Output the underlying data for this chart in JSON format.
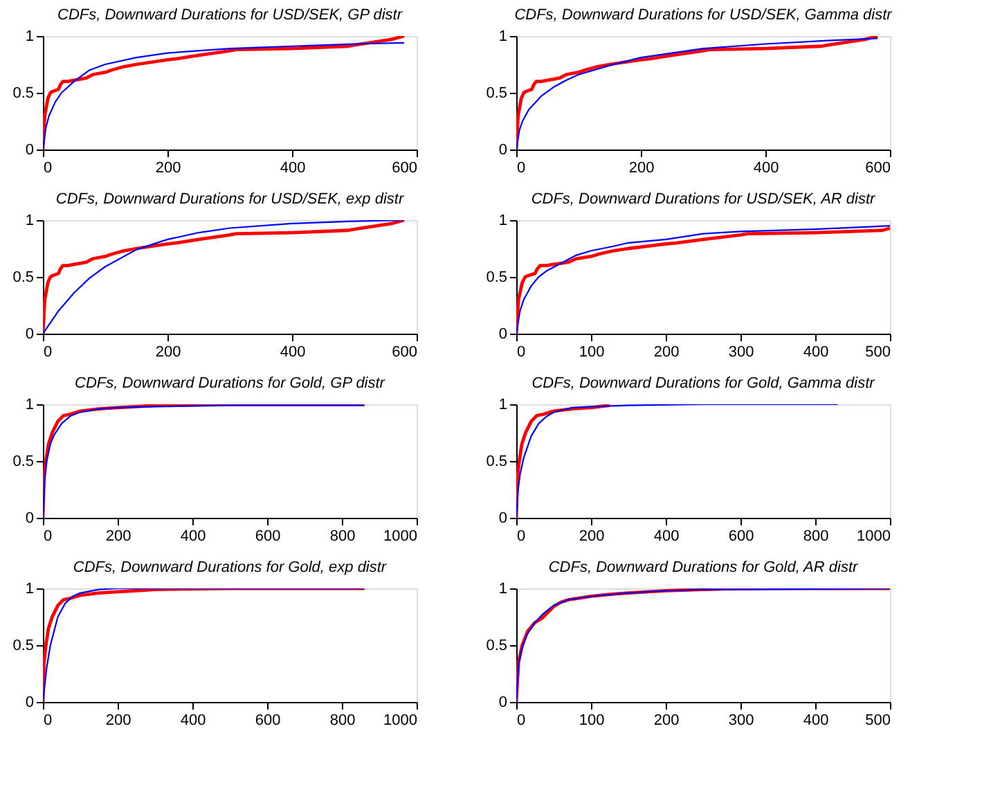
{
  "chart_data": [
    {
      "type": "line",
      "title": "CDFs, Downward Durations for USD/SEK, GP distr",
      "xlim": [
        0,
        600
      ],
      "xticks": [
        0,
        200,
        400,
        600
      ],
      "ylim": [
        0,
        1
      ],
      "yticks": [
        0,
        0.5,
        1
      ],
      "series": [
        {
          "color": "#ff0000",
          "x": [
            0,
            3,
            8,
            12,
            15,
            20,
            25,
            28,
            32,
            40,
            50,
            60,
            70,
            80,
            100,
            110,
            130,
            150,
            200,
            215,
            250,
            300,
            310,
            400,
            490,
            500,
            560,
            580
          ],
          "values": [
            0,
            0.3,
            0.45,
            0.5,
            0.51,
            0.52,
            0.53,
            0.57,
            0.6,
            0.6,
            0.61,
            0.62,
            0.63,
            0.66,
            0.68,
            0.7,
            0.73,
            0.75,
            0.79,
            0.8,
            0.83,
            0.87,
            0.88,
            0.89,
            0.91,
            0.92,
            0.97,
            1.0
          ]
        },
        {
          "color": "#0000ff",
          "x": [
            0,
            5,
            10,
            20,
            30,
            50,
            75,
            100,
            150,
            200,
            300,
            400,
            500,
            580
          ],
          "values": [
            0,
            0.2,
            0.3,
            0.42,
            0.5,
            0.6,
            0.7,
            0.75,
            0.81,
            0.85,
            0.89,
            0.91,
            0.93,
            0.94
          ]
        }
      ]
    },
    {
      "type": "line",
      "title": "CDFs, Downward Durations for USD/SEK, Gamma distr",
      "xlim": [
        0,
        600
      ],
      "xticks": [
        0,
        200,
        400,
        600
      ],
      "ylim": [
        0,
        1
      ],
      "yticks": [
        0,
        0.5,
        1
      ],
      "series": [
        {
          "color": "#ff0000",
          "x": [
            0,
            3,
            8,
            12,
            15,
            20,
            25,
            28,
            32,
            40,
            50,
            60,
            70,
            80,
            100,
            110,
            130,
            150,
            200,
            215,
            250,
            300,
            310,
            400,
            490,
            500,
            560,
            580
          ],
          "values": [
            0,
            0.3,
            0.45,
            0.5,
            0.51,
            0.52,
            0.53,
            0.57,
            0.6,
            0.6,
            0.61,
            0.62,
            0.63,
            0.66,
            0.68,
            0.7,
            0.73,
            0.75,
            0.79,
            0.8,
            0.83,
            0.87,
            0.88,
            0.89,
            0.91,
            0.92,
            0.97,
            1.0
          ]
        },
        {
          "color": "#0000ff",
          "x": [
            0,
            5,
            10,
            20,
            40,
            60,
            80,
            100,
            150,
            200,
            300,
            400,
            500,
            580
          ],
          "values": [
            0,
            0.17,
            0.25,
            0.35,
            0.47,
            0.55,
            0.61,
            0.66,
            0.74,
            0.81,
            0.89,
            0.93,
            0.96,
            0.98
          ]
        }
      ]
    },
    {
      "type": "line",
      "title": "CDFs, Downward Durations for USD/SEK, exp distr",
      "xlim": [
        0,
        600
      ],
      "xticks": [
        0,
        200,
        400,
        600
      ],
      "ylim": [
        0,
        1
      ],
      "yticks": [
        0,
        0.5,
        1
      ],
      "series": [
        {
          "color": "#ff0000",
          "x": [
            0,
            3,
            8,
            12,
            15,
            20,
            25,
            28,
            32,
            40,
            50,
            60,
            70,
            80,
            100,
            110,
            130,
            150,
            200,
            215,
            250,
            300,
            310,
            400,
            490,
            500,
            560,
            580
          ],
          "values": [
            0,
            0.3,
            0.45,
            0.5,
            0.51,
            0.52,
            0.53,
            0.57,
            0.6,
            0.6,
            0.61,
            0.62,
            0.63,
            0.66,
            0.68,
            0.7,
            0.73,
            0.75,
            0.79,
            0.8,
            0.83,
            0.87,
            0.88,
            0.89,
            0.91,
            0.92,
            0.97,
            1.0
          ]
        },
        {
          "color": "#0000ff",
          "x": [
            0,
            25,
            50,
            75,
            100,
            150,
            200,
            250,
            300,
            400,
            500,
            580
          ],
          "values": [
            0,
            0.2,
            0.36,
            0.49,
            0.59,
            0.74,
            0.83,
            0.89,
            0.93,
            0.97,
            0.99,
            1.0
          ]
        }
      ]
    },
    {
      "type": "line",
      "title": "CDFs, Downward Durations for USD/SEK, AR distr",
      "xlim": [
        0,
        500
      ],
      "xticks": [
        0,
        100,
        200,
        300,
        400,
        500
      ],
      "ylim": [
        0,
        1
      ],
      "yticks": [
        0,
        0.5,
        1
      ],
      "series": [
        {
          "color": "#ff0000",
          "x": [
            0,
            3,
            8,
            12,
            15,
            20,
            25,
            28,
            32,
            40,
            50,
            60,
            70,
            80,
            100,
            110,
            130,
            150,
            200,
            215,
            250,
            300,
            310,
            400,
            490,
            500
          ],
          "values": [
            0,
            0.3,
            0.45,
            0.5,
            0.51,
            0.52,
            0.53,
            0.57,
            0.6,
            0.6,
            0.61,
            0.62,
            0.63,
            0.66,
            0.68,
            0.7,
            0.73,
            0.75,
            0.79,
            0.8,
            0.83,
            0.87,
            0.88,
            0.89,
            0.91,
            0.93
          ]
        },
        {
          "color": "#0000ff",
          "x": [
            0,
            5,
            10,
            20,
            30,
            40,
            60,
            80,
            100,
            130,
            150,
            200,
            250,
            300,
            400,
            500
          ],
          "values": [
            0,
            0.2,
            0.3,
            0.42,
            0.5,
            0.55,
            0.62,
            0.69,
            0.73,
            0.77,
            0.8,
            0.83,
            0.88,
            0.9,
            0.92,
            0.95
          ]
        }
      ]
    },
    {
      "type": "line",
      "title": "CDFs, Downward Durations for Gold, GP distr",
      "xlim": [
        0,
        1000
      ],
      "xticks": [
        0,
        200,
        400,
        600,
        800,
        1000
      ],
      "ylim": [
        0,
        1
      ],
      "yticks": [
        0,
        0.5,
        1
      ],
      "series": [
        {
          "color": "#ff0000",
          "x": [
            0,
            3,
            8,
            15,
            25,
            40,
            55,
            70,
            100,
            150,
            200,
            250,
            300,
            500,
            860
          ],
          "values": [
            0,
            0.35,
            0.5,
            0.65,
            0.75,
            0.85,
            0.9,
            0.91,
            0.94,
            0.96,
            0.97,
            0.98,
            0.99,
            1.0,
            1.0
          ]
        },
        {
          "color": "#0000ff",
          "x": [
            0,
            5,
            10,
            20,
            30,
            50,
            75,
            100,
            150,
            200,
            300,
            500,
            860
          ],
          "values": [
            0,
            0.35,
            0.5,
            0.65,
            0.73,
            0.83,
            0.9,
            0.93,
            0.96,
            0.97,
            0.98,
            0.99,
            0.99
          ]
        }
      ]
    },
    {
      "type": "line",
      "title": "CDFs, Downward Durations for Gold, Gamma distr",
      "xlim": [
        0,
        1000
      ],
      "xticks": [
        0,
        200,
        400,
        600,
        800,
        1000
      ],
      "ylim": [
        0,
        1
      ],
      "yticks": [
        0,
        0.5,
        1
      ],
      "series": [
        {
          "color": "#ff0000",
          "x": [
            0,
            3,
            8,
            15,
            25,
            40,
            55,
            70,
            100,
            150,
            200,
            250
          ],
          "values": [
            0,
            0.35,
            0.5,
            0.65,
            0.75,
            0.85,
            0.9,
            0.91,
            0.94,
            0.96,
            0.97,
            0.99
          ]
        },
        {
          "color": "#0000ff",
          "x": [
            0,
            5,
            10,
            20,
            40,
            60,
            80,
            100,
            150,
            200,
            300,
            500,
            860
          ],
          "values": [
            0,
            0.25,
            0.38,
            0.53,
            0.72,
            0.83,
            0.89,
            0.93,
            0.97,
            0.98,
            0.99,
            1.0,
            1.0
          ]
        }
      ]
    },
    {
      "type": "line",
      "title": "CDFs, Downward Durations for Gold, exp distr",
      "xlim": [
        0,
        1000
      ],
      "xticks": [
        0,
        200,
        400,
        600,
        800,
        1000
      ],
      "ylim": [
        0,
        1
      ],
      "yticks": [
        0,
        0.5,
        1
      ],
      "series": [
        {
          "color": "#ff0000",
          "x": [
            0,
            3,
            8,
            15,
            25,
            40,
            55,
            70,
            100,
            150,
            200,
            250,
            300,
            500,
            860
          ],
          "values": [
            0,
            0.35,
            0.5,
            0.65,
            0.75,
            0.85,
            0.9,
            0.91,
            0.94,
            0.96,
            0.97,
            0.98,
            0.99,
            1.0,
            1.0
          ]
        },
        {
          "color": "#0000ff",
          "x": [
            0,
            10,
            20,
            40,
            60,
            80,
            100,
            150,
            200,
            860
          ],
          "values": [
            0,
            0.3,
            0.5,
            0.75,
            0.87,
            0.93,
            0.96,
            0.99,
            1.0,
            1.0
          ]
        }
      ]
    },
    {
      "type": "line",
      "title": "CDFs, Downward Durations for Gold, AR distr",
      "xlim": [
        0,
        500
      ],
      "xticks": [
        0,
        100,
        200,
        300,
        400,
        500
      ],
      "ylim": [
        0,
        1
      ],
      "yticks": [
        0,
        0.5,
        1
      ],
      "series": [
        {
          "color": "#ff0000",
          "x": [
            0,
            3,
            8,
            15,
            25,
            35,
            50,
            60,
            70,
            100,
            130,
            150,
            200,
            250,
            300,
            500
          ],
          "values": [
            0,
            0.35,
            0.5,
            0.62,
            0.7,
            0.74,
            0.84,
            0.88,
            0.9,
            0.93,
            0.95,
            0.96,
            0.98,
            0.99,
            1.0,
            1.0
          ]
        },
        {
          "color": "#0000ff",
          "x": [
            0,
            3,
            8,
            15,
            25,
            35,
            50,
            70,
            100,
            150,
            200,
            250,
            300,
            500
          ],
          "values": [
            0,
            0.33,
            0.48,
            0.6,
            0.7,
            0.77,
            0.85,
            0.9,
            0.93,
            0.96,
            0.98,
            0.99,
            0.99,
            1.0
          ]
        }
      ]
    }
  ]
}
